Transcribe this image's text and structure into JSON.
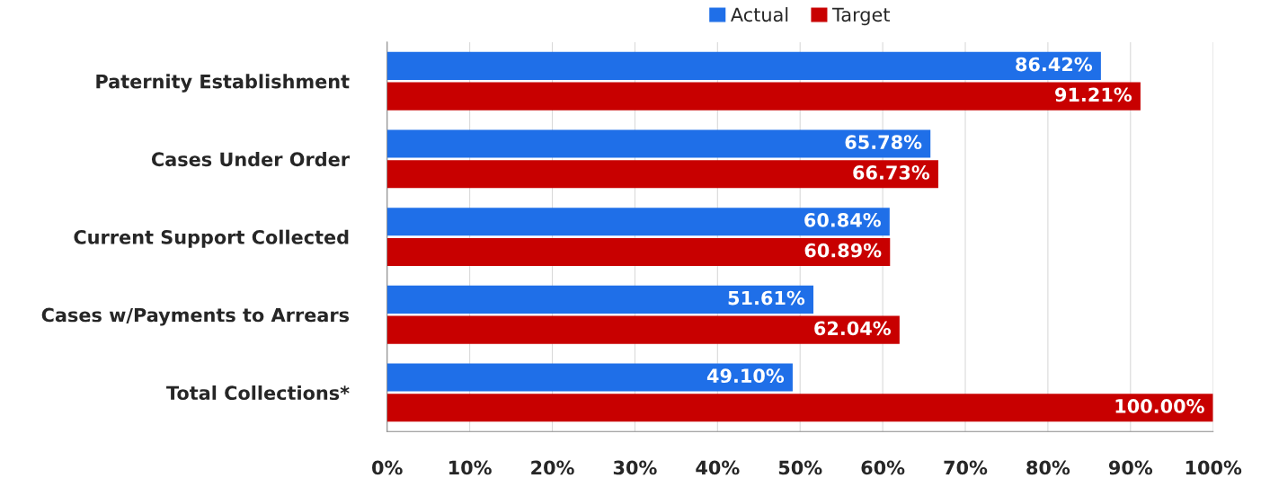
{
  "chart_data": {
    "type": "bar",
    "orientation": "horizontal",
    "categories": [
      "Paternity Establishment",
      "Cases Under Order",
      "Current Support Collected",
      "Cases w/Payments to Arrears",
      "Total Collections*"
    ],
    "series": [
      {
        "name": "Actual",
        "color": "#1f6fe8",
        "values": [
          86.42,
          65.78,
          60.84,
          51.61,
          49.1
        ],
        "value_labels": [
          "86.42%",
          "65.78%",
          "60.84%",
          "51.61%",
          "49.10%"
        ]
      },
      {
        "name": "Target",
        "color": "#c80000",
        "values": [
          91.21,
          66.73,
          60.89,
          62.04,
          100.0
        ],
        "value_labels": [
          "91.21%",
          "66.73%",
          "60.89%",
          "62.04%",
          "100.00%"
        ]
      }
    ],
    "xlim": [
      0,
      100
    ],
    "xticks": [
      {
        "value": 0,
        "label": "0%"
      },
      {
        "value": 10,
        "label": "10%"
      },
      {
        "value": 20,
        "label": "20%"
      },
      {
        "value": 30,
        "label": "30%"
      },
      {
        "value": 40,
        "label": "40%"
      },
      {
        "value": 50,
        "label": "50%"
      },
      {
        "value": 60,
        "label": "60%"
      },
      {
        "value": 70,
        "label": "70%"
      },
      {
        "value": 80,
        "label": "80%"
      },
      {
        "value": 90,
        "label": "90%"
      },
      {
        "value": 100,
        "label": "100%"
      }
    ],
    "grid": "x",
    "legend": "top"
  }
}
